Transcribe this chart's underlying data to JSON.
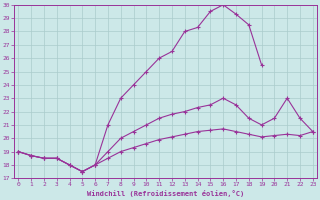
{
  "xlabel": "Windchill (Refroidissement éolien,°C)",
  "background_color": "#cce8e8",
  "grid_color": "#aacccc",
  "line_color": "#993399",
  "xmin": 0,
  "xmax": 23,
  "ymin": 17,
  "ymax": 30,
  "line1_x": [
    0,
    1,
    2,
    3,
    4,
    5,
    6,
    7,
    8,
    9,
    10,
    11,
    12,
    13,
    14,
    15,
    16,
    17,
    18,
    19
  ],
  "line1_y": [
    19.0,
    18.7,
    18.5,
    18.5,
    18.0,
    17.5,
    18.0,
    21.0,
    23.0,
    24.0,
    25.0,
    26.0,
    26.5,
    28.0,
    28.3,
    29.5,
    30.0,
    29.3,
    28.5,
    25.5
  ],
  "line2_x": [
    0,
    1,
    2,
    3,
    4,
    5,
    6,
    7,
    8,
    9,
    10,
    11,
    12,
    13,
    14,
    15,
    16,
    17,
    18,
    19,
    20,
    21,
    22,
    23
  ],
  "line2_y": [
    19.0,
    18.7,
    18.5,
    18.5,
    18.0,
    17.5,
    18.0,
    19.0,
    20.0,
    20.5,
    21.0,
    21.5,
    21.8,
    22.0,
    22.3,
    22.5,
    23.0,
    22.5,
    21.5,
    21.0,
    21.5,
    23.0,
    21.5,
    20.5
  ],
  "line3_x": [
    0,
    1,
    2,
    3,
    4,
    5,
    6,
    7,
    8,
    9,
    10,
    11,
    12,
    13,
    14,
    15,
    16,
    17,
    18,
    19,
    20,
    21,
    22,
    23
  ],
  "line3_y": [
    19.0,
    18.7,
    18.5,
    18.5,
    18.0,
    17.5,
    18.0,
    18.5,
    19.0,
    19.3,
    19.6,
    19.9,
    20.1,
    20.3,
    20.5,
    20.6,
    20.7,
    20.5,
    20.3,
    20.1,
    20.2,
    20.3,
    20.2,
    20.5
  ],
  "xtick_labels": [
    "0",
    "1",
    "2",
    "3",
    "4",
    "5",
    "6",
    "7",
    "8",
    "9",
    "10",
    "11",
    "12",
    "13",
    "14",
    "15",
    "16",
    "17",
    "18",
    "19",
    "20",
    "21",
    "22",
    "23"
  ],
  "ytick_labels": [
    "17",
    "18",
    "19",
    "20",
    "21",
    "22",
    "23",
    "24",
    "25",
    "26",
    "27",
    "28",
    "29",
    "30"
  ]
}
